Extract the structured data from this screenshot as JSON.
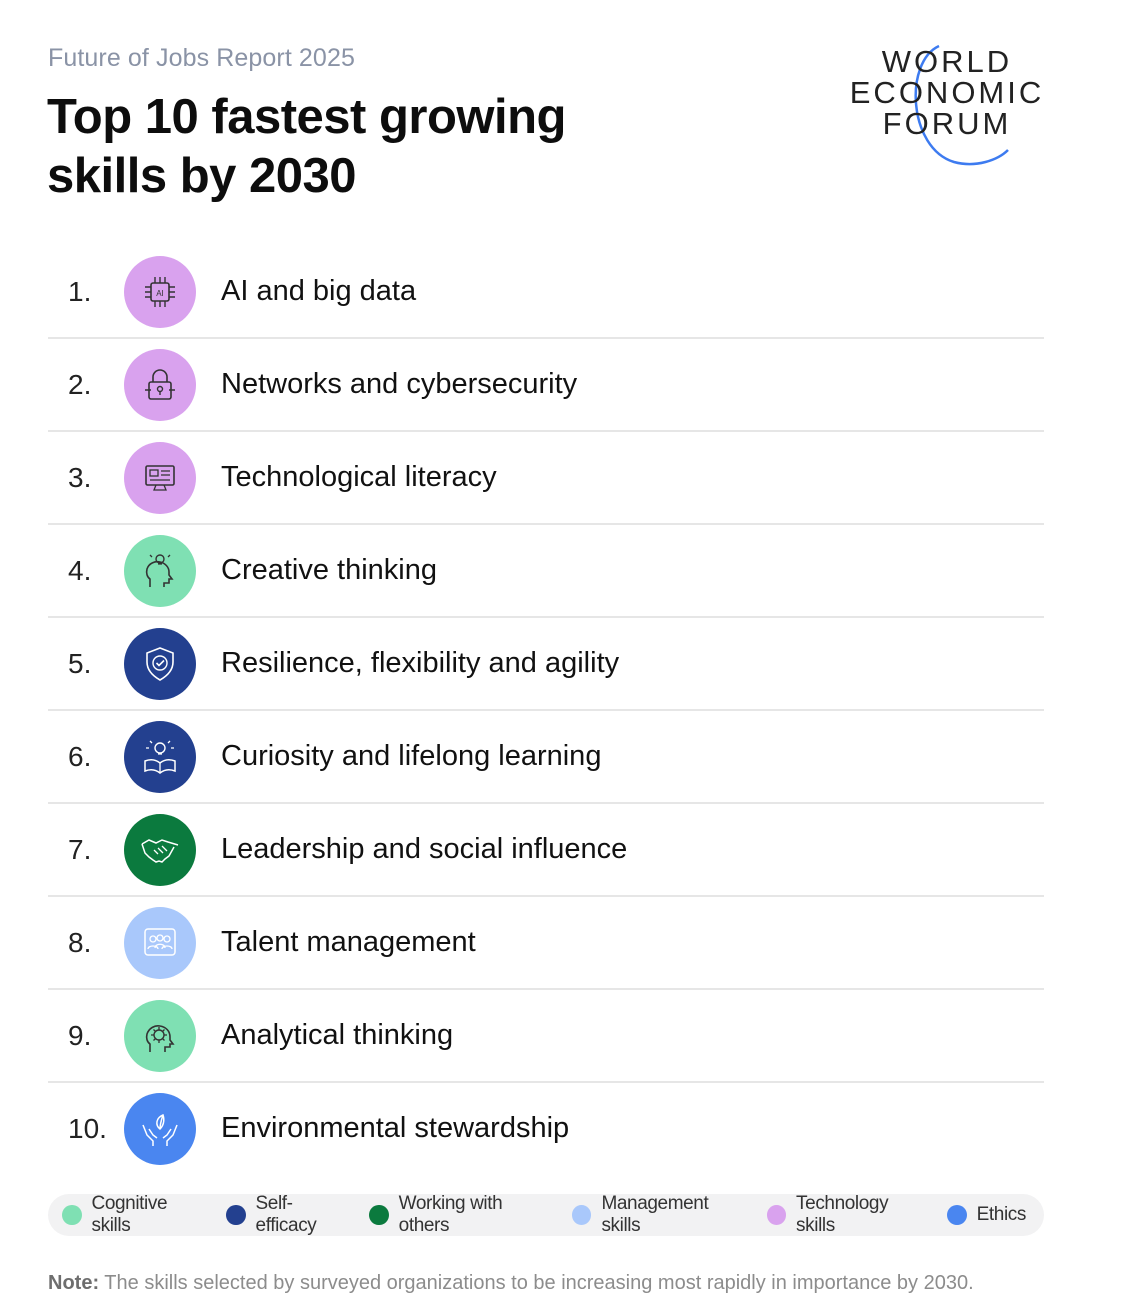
{
  "header": {
    "subtitle": "Future of Jobs Report 2025",
    "title": "Top 10 fastest growing skills by 2030"
  },
  "logo": {
    "line1": "WORLD",
    "line2": "ECONOMIC",
    "line3": "FORUM",
    "arc_color": "#3d7bf0"
  },
  "skills": [
    {
      "rank": "1.",
      "label": "AI and big data",
      "category": "Technology skills",
      "color": "#d9a2ee",
      "icon": "ai-chip-icon"
    },
    {
      "rank": "2.",
      "label": "Networks and cybersecurity",
      "category": "Technology skills",
      "color": "#d9a2ee",
      "icon": "padlock-circuit-icon"
    },
    {
      "rank": "3.",
      "label": "Technological literacy",
      "category": "Technology skills",
      "color": "#d9a2ee",
      "icon": "computer-monitor-icon"
    },
    {
      "rank": "4.",
      "label": "Creative thinking",
      "category": "Cognitive skills",
      "color": "#7fe0b3",
      "icon": "head-lightbulb-icon"
    },
    {
      "rank": "5.",
      "label": "Resilience, flexibility and agility",
      "category": "Self-efficacy",
      "color": "#23408f",
      "icon": "shield-check-icon"
    },
    {
      "rank": "6.",
      "label": "Curiosity and lifelong learning",
      "category": "Self-efficacy",
      "color": "#23408f",
      "icon": "book-lightbulb-icon"
    },
    {
      "rank": "7.",
      "label": "Leadership and social influence",
      "category": "Working with others",
      "color": "#0b7a3e",
      "icon": "handshake-icon"
    },
    {
      "rank": "8.",
      "label": "Talent management",
      "category": "Management skills",
      "color": "#a9c8fb",
      "icon": "people-group-icon"
    },
    {
      "rank": "9.",
      "label": "Analytical thinking",
      "category": "Cognitive skills",
      "color": "#7fe0b3",
      "icon": "head-gear-icon"
    },
    {
      "rank": "10.",
      "label": "Environmental stewardship",
      "category": "Ethics",
      "color": "#4a86f0",
      "icon": "hands-leaf-icon"
    }
  ],
  "legend": [
    {
      "label": "Cognitive skills",
      "color": "#7fe0b3"
    },
    {
      "label": "Self-efficacy",
      "color": "#23408f"
    },
    {
      "label": "Working with others",
      "color": "#0b7a3e"
    },
    {
      "label": "Management skills",
      "color": "#a9c8fb"
    },
    {
      "label": "Technology skills",
      "color": "#d9a2ee"
    },
    {
      "label": "Ethics",
      "color": "#4a86f0"
    }
  ],
  "note": {
    "prefix": "Note:",
    "text": " The skills selected by surveyed organizations to be increasing most rapidly in importance by 2030."
  }
}
